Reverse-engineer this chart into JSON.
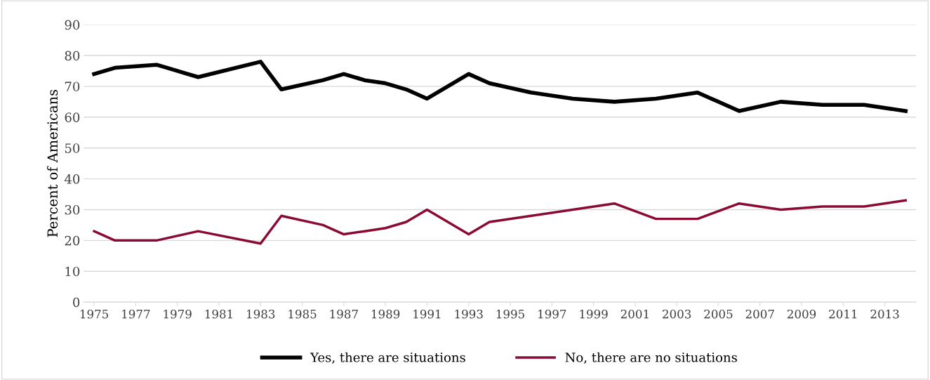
{
  "chart_data": {
    "type": "line",
    "ylabel": "Percent of Americans",
    "x": [
      1975,
      1976,
      1978,
      1980,
      1983,
      1984,
      1986,
      1987,
      1988,
      1989,
      1990,
      1991,
      1993,
      1994,
      1996,
      1998,
      2000,
      2002,
      2004,
      2006,
      2008,
      2010,
      2012,
      2014
    ],
    "series": [
      {
        "name": "Yes, there are situations",
        "color": "#000000",
        "values": [
          74,
          76,
          77,
          73,
          78,
          69,
          72,
          74,
          72,
          71,
          69,
          66,
          74,
          71,
          68,
          66,
          65,
          66,
          68,
          62,
          65,
          64,
          64,
          62
        ]
      },
      {
        "name": "No, there are no situations",
        "color": "#8b0a32",
        "values": [
          23,
          20,
          20,
          23,
          19,
          28,
          25,
          22,
          23,
          24,
          26,
          30,
          22,
          26,
          28,
          30,
          32,
          27,
          27,
          32,
          30,
          31,
          31,
          33
        ]
      }
    ],
    "xlim": [
      1974.5,
      2014.5
    ],
    "xticks": [
      1975,
      1977,
      1979,
      1981,
      1983,
      1985,
      1987,
      1989,
      1991,
      1993,
      1995,
      1997,
      1999,
      2001,
      2003,
      2005,
      2007,
      2009,
      2011,
      2013
    ],
    "ylim": [
      0,
      90
    ],
    "yticks": [
      0,
      10,
      20,
      30,
      40,
      50,
      60,
      70,
      80,
      90
    ],
    "grid": "y",
    "legend": "bottom",
    "marker": "none",
    "line_style": "solid"
  }
}
